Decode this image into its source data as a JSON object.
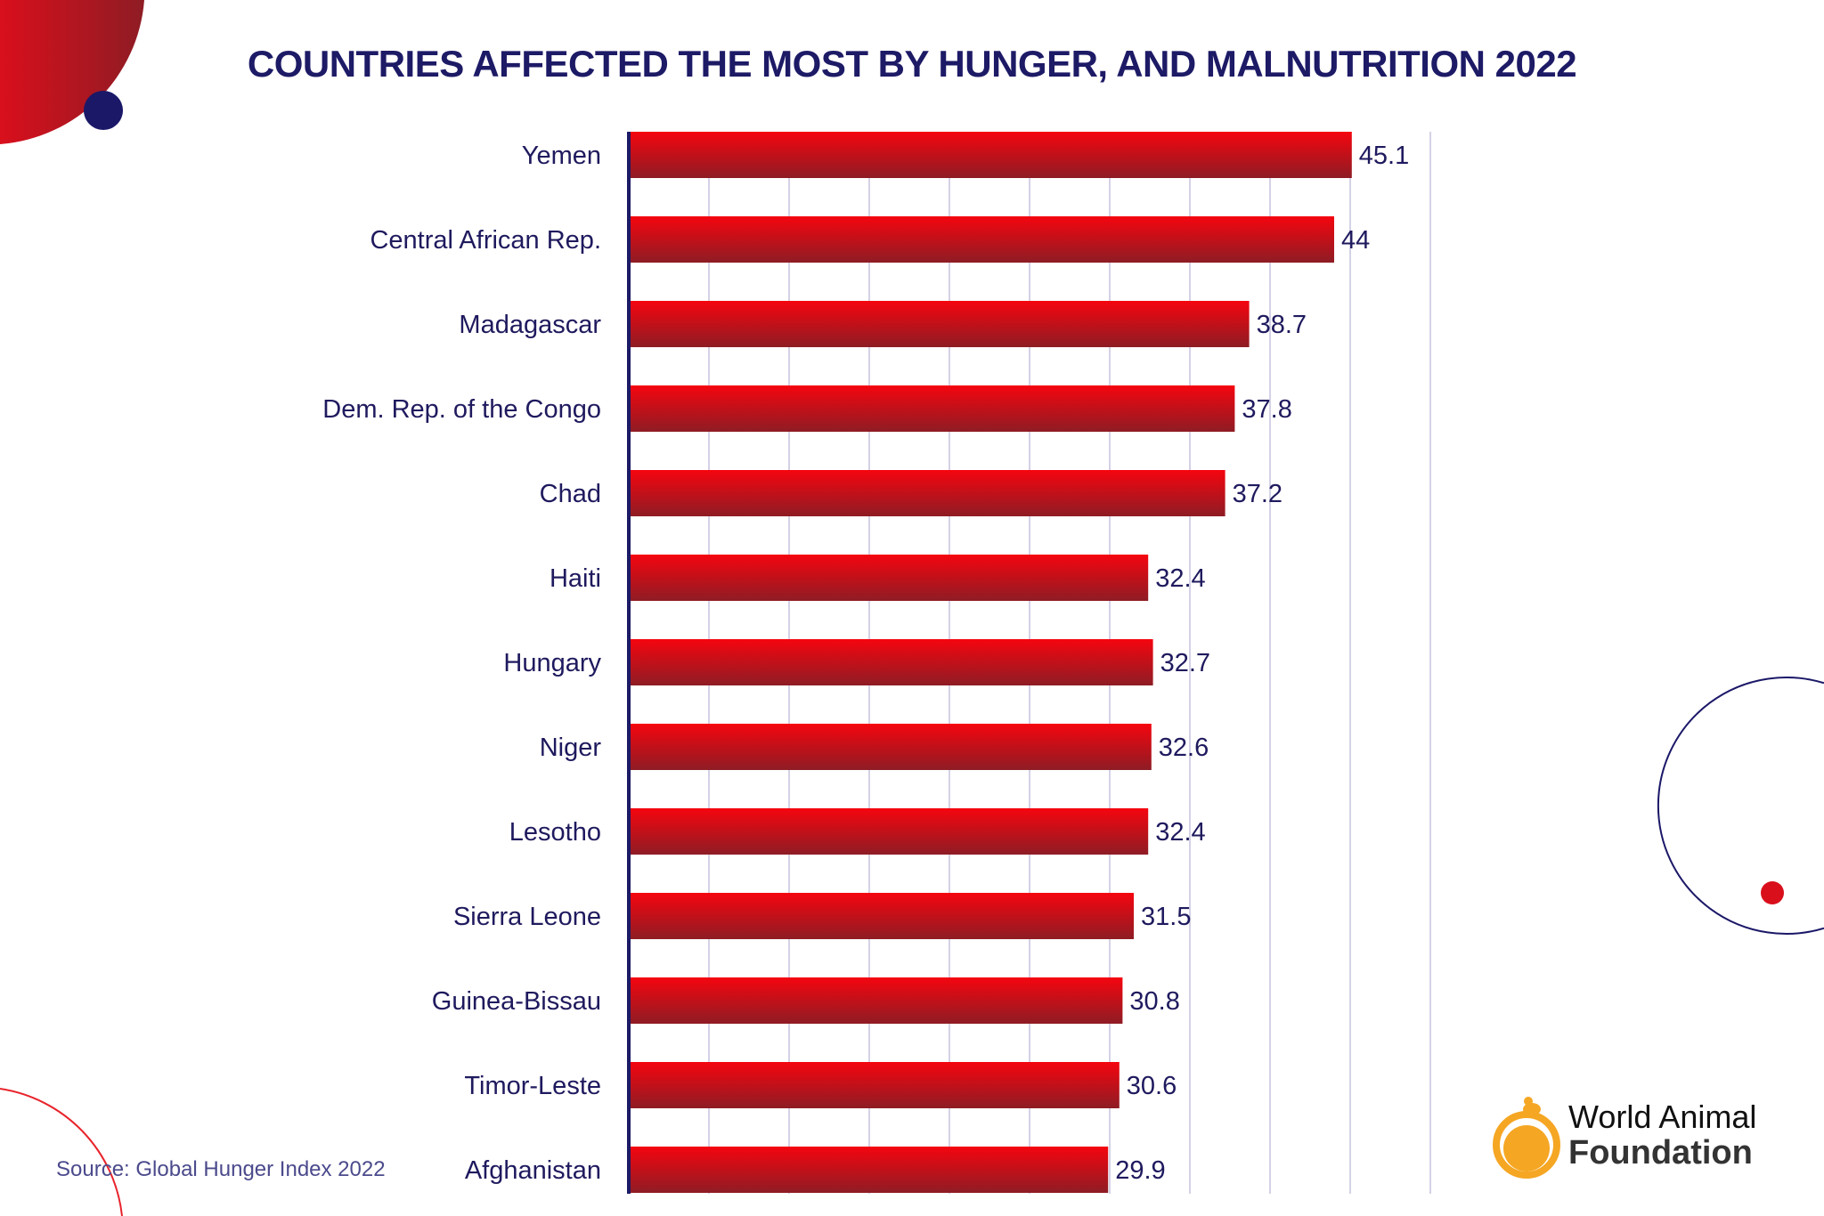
{
  "chart_data": {
    "type": "bar",
    "orientation": "horizontal",
    "title": "COUNTRIES AFFECTED THE MOST BY HUNGER, AND MALNUTRITION 2022",
    "categories": [
      "Yemen",
      "Central African Rep.",
      "Madagascar",
      "Dem. Rep. of the Congo",
      "Chad",
      "Haiti",
      "Hungary",
      "Niger",
      "Lesotho",
      "Sierra Leone",
      "Guinea-Bissau",
      "Timor-Leste",
      "Afghanistan"
    ],
    "values": [
      45.1,
      44,
      38.7,
      37.8,
      37.2,
      32.4,
      32.7,
      32.6,
      32.4,
      31.5,
      30.8,
      30.6,
      29.9
    ],
    "value_labels": [
      "45.1",
      "44",
      "38.7",
      "37.8",
      "37.2",
      "32.4",
      "32.7",
      "32.6",
      "32.4",
      "31.5",
      "30.8",
      "30.6",
      "29.9"
    ],
    "xlim": [
      0,
      50
    ],
    "grid_step": 5,
    "grid": true,
    "xlabel": "",
    "ylabel": "",
    "colors": {
      "bar_top": "#f5050f",
      "bar_bottom": "#8e1c24",
      "text": "#1f1a5e",
      "grid": "#c5c3dd",
      "axis": "#1d1a66"
    }
  },
  "source": "Source: Global Hunger Index 2022",
  "logo": {
    "line1": "World Animal",
    "line2": "Foundation",
    "color": "#f5a623"
  }
}
